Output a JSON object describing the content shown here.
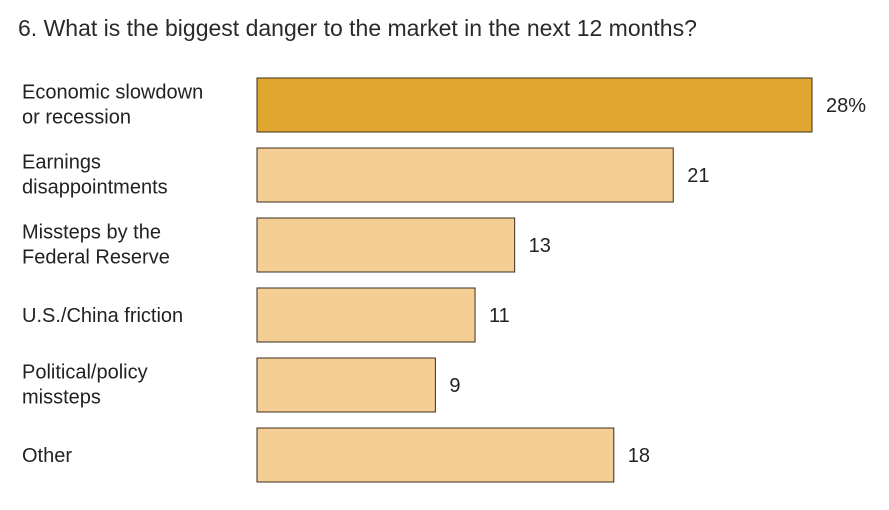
{
  "chart_data": {
    "type": "bar",
    "orientation": "horizontal",
    "title": "6. What is the biggest danger to the market in the next 12 months?",
    "categories": [
      [
        "Economic slowdown",
        "or recession"
      ],
      [
        "Earnings",
        "disappointments"
      ],
      [
        "Missteps by the",
        "Federal Reserve"
      ],
      [
        "U.S./China friction"
      ],
      [
        "Political/policy",
        "missteps"
      ],
      [
        "Other"
      ]
    ],
    "values": [
      28,
      21,
      13,
      11,
      9,
      18
    ],
    "value_labels": [
      "28%",
      "21",
      "13",
      "11",
      "9",
      "18"
    ],
    "xlim": [
      0,
      28
    ],
    "grid": false,
    "legend": "none",
    "colors": {
      "highlight": "#E0A630",
      "bar": "#F5CE95",
      "stroke": "#3a2e1c"
    }
  }
}
